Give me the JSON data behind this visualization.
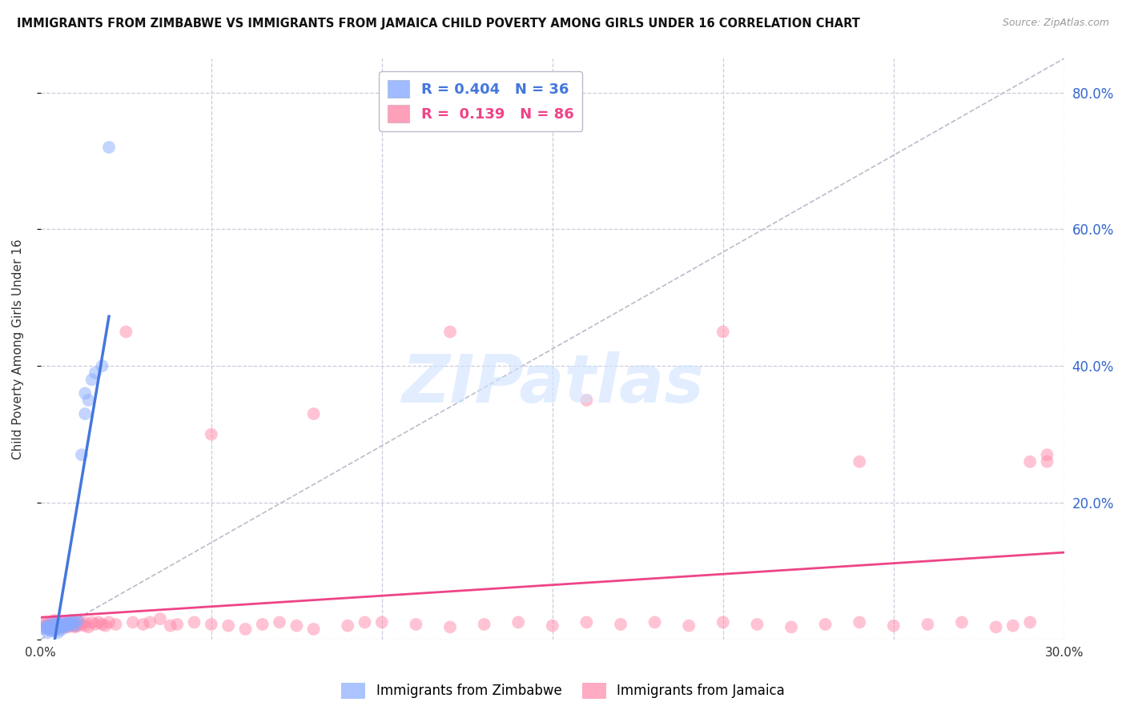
{
  "title": "IMMIGRANTS FROM ZIMBABWE VS IMMIGRANTS FROM JAMAICA CHILD POVERTY AMONG GIRLS UNDER 16 CORRELATION CHART",
  "source": "Source: ZipAtlas.com",
  "ylabel": "Child Poverty Among Girls Under 16",
  "xlim": [
    0.0,
    0.3
  ],
  "ylim": [
    0.0,
    0.85
  ],
  "yticks": [
    0.0,
    0.2,
    0.4,
    0.6,
    0.8
  ],
  "xticks": [
    0.0,
    0.05,
    0.1,
    0.15,
    0.2,
    0.25,
    0.3
  ],
  "zimbabwe_R": 0.404,
  "zimbabwe_N": 36,
  "jamaica_R": 0.139,
  "jamaica_N": 86,
  "zimbabwe_color": "#88aaff",
  "jamaica_color": "#ff88aa",
  "zimbabwe_line_color": "#4477dd",
  "jamaica_line_color": "#ee4488",
  "diag_color": "#bbbbcc",
  "background_color": "#ffffff",
  "grid_color": "#ccccdd",
  "watermark_text": "ZIPatlas",
  "zimbabwe_x": [
    0.001,
    0.001,
    0.002,
    0.002,
    0.002,
    0.003,
    0.003,
    0.003,
    0.004,
    0.004,
    0.004,
    0.005,
    0.005,
    0.005,
    0.005,
    0.006,
    0.006,
    0.006,
    0.007,
    0.007,
    0.007,
    0.008,
    0.008,
    0.009,
    0.009,
    0.01,
    0.01,
    0.011,
    0.012,
    0.013,
    0.013,
    0.014,
    0.015,
    0.016,
    0.018,
    0.02
  ],
  "zimbabwe_y": [
    0.015,
    0.018,
    0.016,
    0.02,
    0.01,
    0.022,
    0.017,
    0.013,
    0.022,
    0.018,
    0.012,
    0.025,
    0.02,
    0.016,
    0.01,
    0.022,
    0.018,
    0.014,
    0.025,
    0.02,
    0.018,
    0.025,
    0.02,
    0.028,
    0.022,
    0.025,
    0.02,
    0.028,
    0.27,
    0.33,
    0.36,
    0.35,
    0.38,
    0.39,
    0.4,
    0.72
  ],
  "jamaica_x": [
    0.001,
    0.001,
    0.002,
    0.002,
    0.003,
    0.003,
    0.003,
    0.004,
    0.004,
    0.004,
    0.005,
    0.005,
    0.005,
    0.006,
    0.006,
    0.006,
    0.007,
    0.007,
    0.008,
    0.008,
    0.008,
    0.009,
    0.009,
    0.01,
    0.01,
    0.01,
    0.011,
    0.011,
    0.012,
    0.013,
    0.013,
    0.014,
    0.015,
    0.016,
    0.017,
    0.018,
    0.019,
    0.02,
    0.022,
    0.025,
    0.027,
    0.03,
    0.032,
    0.035,
    0.038,
    0.04,
    0.045,
    0.05,
    0.055,
    0.06,
    0.065,
    0.07,
    0.075,
    0.08,
    0.09,
    0.095,
    0.1,
    0.11,
    0.12,
    0.13,
    0.14,
    0.15,
    0.16,
    0.17,
    0.18,
    0.19,
    0.2,
    0.21,
    0.22,
    0.23,
    0.24,
    0.25,
    0.26,
    0.27,
    0.28,
    0.285,
    0.29,
    0.295,
    0.05,
    0.08,
    0.12,
    0.16,
    0.2,
    0.24,
    0.29,
    0.295
  ],
  "jamaica_y": [
    0.02,
    0.025,
    0.022,
    0.018,
    0.025,
    0.02,
    0.015,
    0.022,
    0.028,
    0.015,
    0.02,
    0.025,
    0.018,
    0.022,
    0.025,
    0.018,
    0.022,
    0.018,
    0.025,
    0.022,
    0.018,
    0.025,
    0.02,
    0.022,
    0.02,
    0.018,
    0.025,
    0.02,
    0.022,
    0.025,
    0.02,
    0.018,
    0.025,
    0.022,
    0.025,
    0.022,
    0.02,
    0.025,
    0.022,
    0.45,
    0.025,
    0.022,
    0.025,
    0.03,
    0.02,
    0.022,
    0.025,
    0.022,
    0.02,
    0.015,
    0.022,
    0.025,
    0.02,
    0.015,
    0.02,
    0.025,
    0.025,
    0.022,
    0.018,
    0.022,
    0.025,
    0.02,
    0.025,
    0.022,
    0.025,
    0.02,
    0.025,
    0.022,
    0.018,
    0.022,
    0.025,
    0.02,
    0.022,
    0.025,
    0.018,
    0.02,
    0.025,
    0.26,
    0.3,
    0.33,
    0.45,
    0.35,
    0.45,
    0.26,
    0.26,
    0.27
  ]
}
